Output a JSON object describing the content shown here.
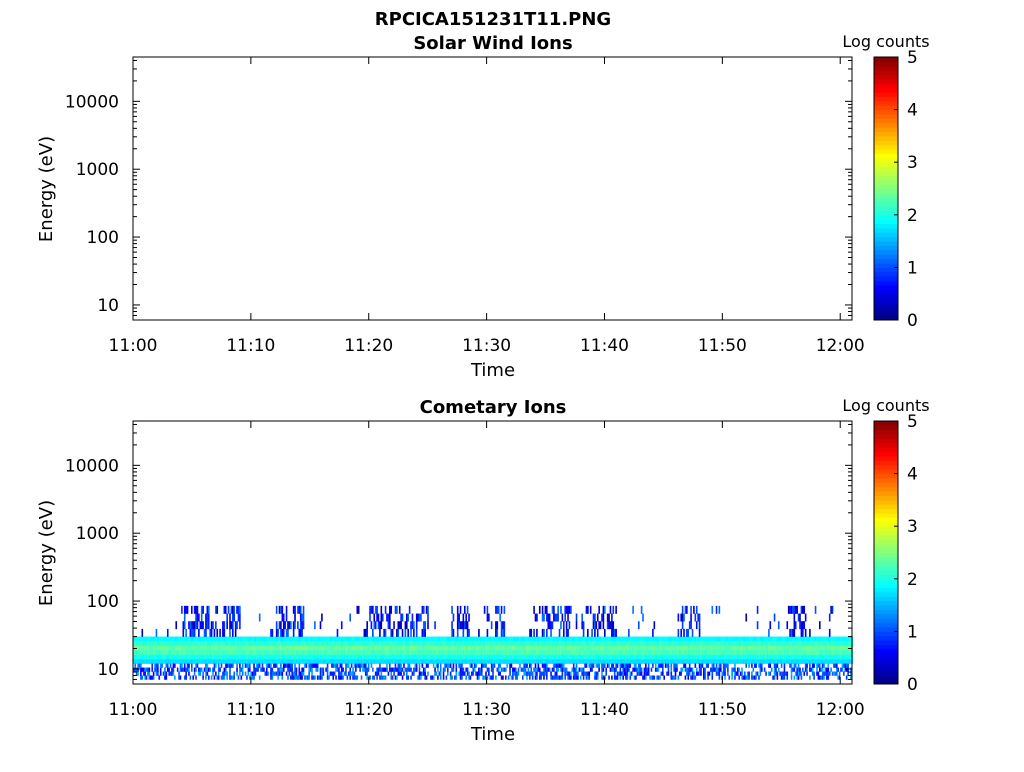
{
  "figure": {
    "title": "RPCICA151231T11.PNG"
  },
  "chart_data": [
    {
      "type": "heatmap",
      "title": "Solar Wind Ions",
      "xlabel": "Time",
      "ylabel": "Energy (eV)",
      "x_ticks": [
        "11:00",
        "11:10",
        "11:20",
        "11:30",
        "11:40",
        "11:50",
        "12:00"
      ],
      "x_range_minutes": [
        0,
        61
      ],
      "y_scale": "log",
      "y_ticks": [
        10,
        100,
        1000,
        10000
      ],
      "y_tick_labels": [
        "10",
        "100",
        "1000",
        "10000"
      ],
      "y_range": [
        6,
        45000
      ],
      "colorbar": {
        "label": "Log counts",
        "range": [
          0,
          5
        ],
        "ticks": [
          "0",
          "1",
          "2",
          "3",
          "4",
          "5"
        ],
        "colormap": "jet"
      },
      "data": "empty"
    },
    {
      "type": "heatmap",
      "title": "Cometary Ions",
      "xlabel": "Time",
      "ylabel": "Energy (eV)",
      "x_ticks": [
        "11:00",
        "11:10",
        "11:20",
        "11:30",
        "11:40",
        "11:50",
        "12:00"
      ],
      "x_range_minutes": [
        0,
        61
      ],
      "y_scale": "log",
      "y_ticks": [
        10,
        100,
        1000,
        10000
      ],
      "y_tick_labels": [
        "10",
        "100",
        "1000",
        "10000"
      ],
      "y_range": [
        6,
        45000
      ],
      "colorbar": {
        "label": "Log counts",
        "range": [
          0,
          5
        ],
        "ticks": [
          "0",
          "1",
          "2",
          "3",
          "4",
          "5"
        ],
        "colormap": "jet"
      },
      "bands": [
        {
          "energy_range_eV": [
            12,
            30
          ],
          "log_counts_range": [
            1.5,
            2.5
          ],
          "coverage": "continuous"
        },
        {
          "energy_range_eV": [
            7,
            12
          ],
          "log_counts_range": [
            0.5,
            1.5
          ],
          "coverage": "patchy"
        },
        {
          "energy_range_eV": [
            30,
            85
          ],
          "log_counts_range": [
            0.2,
            1.2
          ],
          "coverage": "sparse"
        }
      ],
      "sparse_bursts_minutes": [
        [
          4,
          9
        ],
        [
          12,
          14.5
        ],
        [
          19.5,
          25
        ],
        [
          27,
          28.5
        ],
        [
          30,
          31.5
        ],
        [
          33.5,
          37
        ],
        [
          38,
          41
        ],
        [
          46,
          48
        ],
        [
          55.5,
          57
        ]
      ]
    }
  ]
}
